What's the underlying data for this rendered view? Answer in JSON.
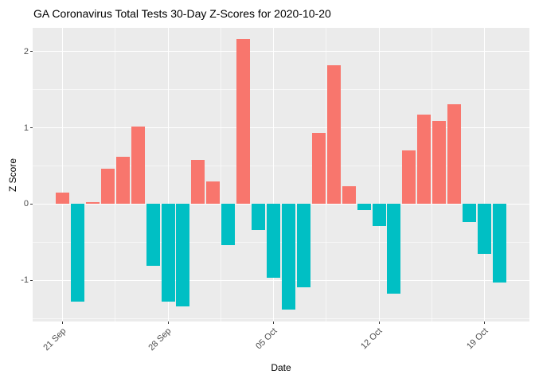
{
  "chart_data": {
    "type": "bar",
    "title": "GA Coronavirus Total Tests 30-Day Z-Scores for 2020-10-20",
    "xlabel": "Date",
    "ylabel": "Z Score",
    "x": [
      "2020-09-21",
      "2020-09-22",
      "2020-09-23",
      "2020-09-24",
      "2020-09-25",
      "2020-09-26",
      "2020-09-27",
      "2020-09-28",
      "2020-09-29",
      "2020-09-30",
      "2020-10-01",
      "2020-10-02",
      "2020-10-03",
      "2020-10-04",
      "2020-10-05",
      "2020-10-06",
      "2020-10-07",
      "2020-10-08",
      "2020-10-09",
      "2020-10-10",
      "2020-10-11",
      "2020-10-12",
      "2020-10-13",
      "2020-10-14",
      "2020-10-15",
      "2020-10-16",
      "2020-10-17",
      "2020-10-18",
      "2020-10-19",
      "2020-10-20"
    ],
    "values": [
      0.15,
      -1.28,
      0.03,
      0.46,
      0.62,
      1.02,
      -0.81,
      -1.28,
      -1.34,
      0.58,
      0.3,
      -0.54,
      2.16,
      -0.34,
      -0.97,
      -1.38,
      -1.09,
      0.93,
      1.82,
      0.23,
      -0.08,
      -0.29,
      -1.17,
      0.7,
      1.17,
      1.09,
      1.31,
      -0.24,
      -0.65,
      -1.03
    ],
    "ylim": [
      -1.54,
      2.31
    ],
    "y_ticks": [
      {
        "value": 2,
        "label": "2"
      },
      {
        "value": 1,
        "label": "1"
      },
      {
        "value": 0,
        "label": "0"
      },
      {
        "value": -1,
        "label": "-1"
      }
    ],
    "x_ticks": [
      {
        "index": 0,
        "label": "21 Sep"
      },
      {
        "index": 7,
        "label": "28 Sep"
      },
      {
        "index": 14,
        "label": "05 Oct"
      },
      {
        "index": 21,
        "label": "12 Oct"
      },
      {
        "index": 28,
        "label": "19 Oct"
      }
    ],
    "grid": {
      "major_y": [
        2,
        1,
        0,
        -1
      ],
      "minor_y": [
        1.5,
        0.5,
        -0.5,
        -1.5
      ],
      "major_x_indices": [
        0,
        7,
        14,
        21,
        28
      ],
      "minor_x_indices": [
        3.5,
        10.5,
        17.5,
        24.5
      ],
      "legend": "none"
    },
    "colors": {
      "positive_bar": "#F8766D",
      "negative_bar": "#00BFC4",
      "panel_background": "#EBEBEB",
      "major_gridline": "#FFFFFF",
      "minor_gridline": "#FFFFFF",
      "tick_label": "#4D4D4D",
      "tick_mark": "#333333",
      "title_text": "#000000"
    }
  }
}
